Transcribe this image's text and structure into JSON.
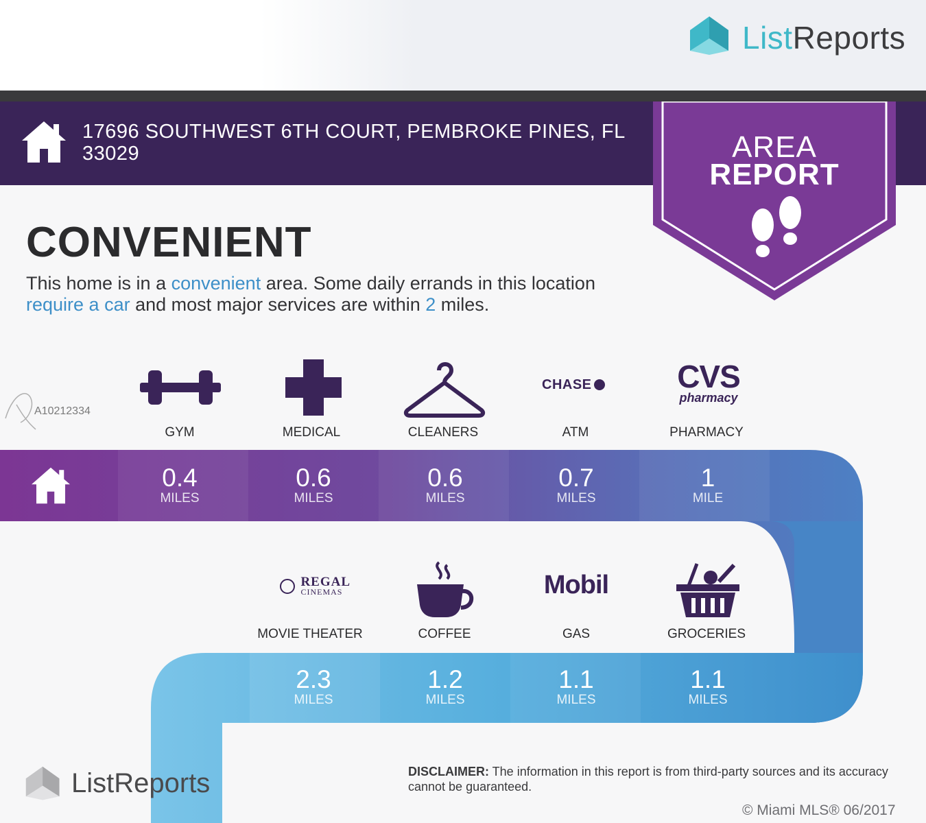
{
  "brand": {
    "logo_top_part1": "List",
    "logo_top_part2": "Reports",
    "logo_bottom": "ListReports"
  },
  "address": "17696 SOUTHWEST 6TH COURT, PEMBROKE PINES, FL 33029",
  "badge": {
    "line1": "AREA",
    "line2": "REPORT"
  },
  "heading": "CONVENIENT",
  "description": {
    "p1": "This home is in a ",
    "h1": "convenient",
    "p2": "  area. Some daily errands in this location ",
    "h2": "require a car",
    "p3": "  and most major services are within ",
    "h3": "2",
    "p4": " miles."
  },
  "mls_id": "A10212334",
  "row1": [
    {
      "label": "GYM",
      "icon": "dumbbell-icon",
      "distance": "0.4",
      "unit": "MILES"
    },
    {
      "label": "MEDICAL",
      "icon": "medical-cross-icon",
      "distance": "0.6",
      "unit": "MILES"
    },
    {
      "label": "CLEANERS",
      "icon": "hanger-icon",
      "distance": "0.6",
      "unit": "MILES"
    },
    {
      "label": "ATM",
      "icon": "chase-logo",
      "logo_text": "CHASE",
      "distance": "0.7",
      "unit": "MILES"
    },
    {
      "label": "PHARMACY",
      "icon": "cvs-logo",
      "logo_text": "CVS",
      "logo_sub": "pharmacy",
      "distance": "1",
      "unit": "MILE"
    }
  ],
  "row2": [
    {
      "label": "MOVIE THEATER",
      "icon": "regal-logo",
      "logo_text": "REGAL",
      "logo_sub": "CINEMAS",
      "distance": "2.3",
      "unit": "MILES"
    },
    {
      "label": "COFFEE",
      "icon": "coffee-cup-icon",
      "distance": "1.2",
      "unit": "MILES"
    },
    {
      "label": "GAS",
      "icon": "mobil-logo",
      "logo_text": "Mobil",
      "distance": "1.1",
      "unit": "MILES"
    },
    {
      "label": "GROCERIES",
      "icon": "grocery-basket-icon",
      "distance": "1.1",
      "unit": "MILES"
    }
  ],
  "disclaimer": {
    "label": "DISCLAIMER:",
    "text": " The information in this report is from third-party sources and its accuracy cannot be guaranteed."
  },
  "copyright": "© Miami MLS® 06/2017",
  "colors": {
    "purple_dark": "#3a2458",
    "purple": "#7a3a96",
    "blue": "#4a86c8",
    "light_blue": "#7cc6ea"
  }
}
